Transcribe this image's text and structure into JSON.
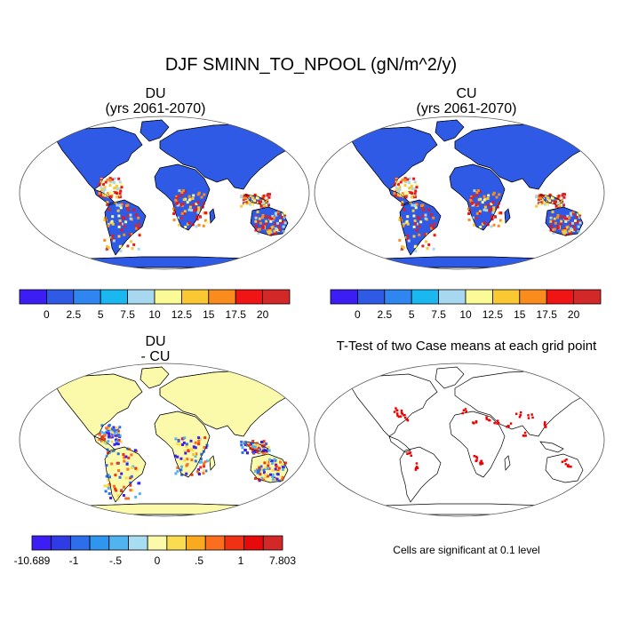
{
  "title": "DJF SMINN_TO_NPOOL (gN/m^2/y)",
  "panels": {
    "du": {
      "title": "DU",
      "subtitle": "(yrs 2061-2070)"
    },
    "cu": {
      "title": "CU",
      "subtitle": "(yrs 2061-2070)"
    },
    "diff": {
      "title": "DU",
      "subtitle": "- CU"
    },
    "ttest": {
      "title": "T-Test of two Case means at each grid point"
    }
  },
  "colorbar_main": {
    "colors": [
      "#3c1ef5",
      "#2f5ae6",
      "#2f86f0",
      "#1ab8f0",
      "#a8d8ef",
      "#fafa96",
      "#fac832",
      "#fa8c1e",
      "#f01414",
      "#d22828"
    ],
    "labels": [
      "0",
      "2.5",
      "5",
      "7.5",
      "10",
      "12.5",
      "15",
      "17.5",
      "20"
    ]
  },
  "colorbar_diff": {
    "colors": [
      "#3c1ef5",
      "#2f3ce6",
      "#2f6eea",
      "#2f96f0",
      "#50b4f0",
      "#a8dcf0",
      "#fafaaa",
      "#fadc50",
      "#faaa1e",
      "#fa6e1e",
      "#f03214",
      "#e60a0a",
      "#d22828"
    ],
    "labels": [
      "-10.689",
      "-1",
      "-.5",
      "0",
      ".5",
      "1",
      "7.803"
    ]
  },
  "significance_note": "Cells are significant at 0.1 level",
  "colors": {
    "land_main": "#2f5ae6",
    "land_diff": "#fafaaa",
    "sig": "#f00000"
  }
}
